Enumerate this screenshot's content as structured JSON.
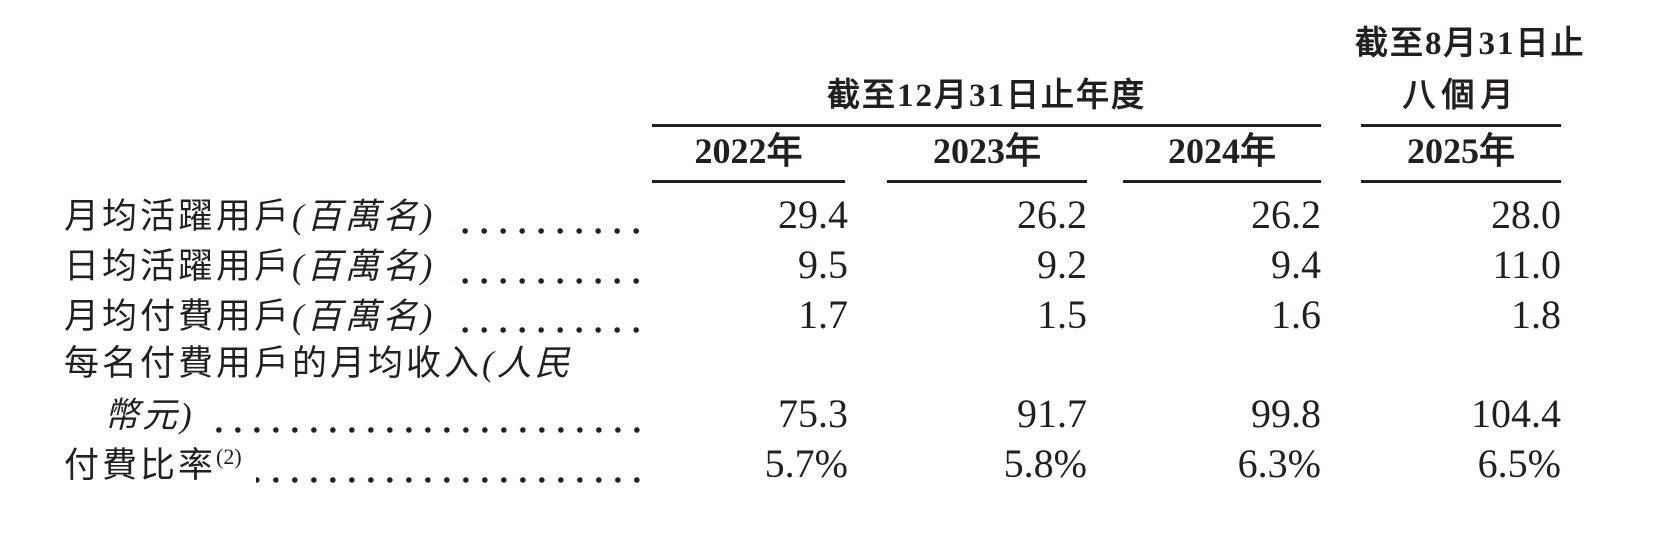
{
  "header": {
    "annual_group": "截至12月31日止年度",
    "interim_group_line1": "截至8月31日止",
    "interim_group_line2": "八個月",
    "years": [
      "2022年",
      "2023年",
      "2024年",
      "2025年"
    ]
  },
  "rows": [
    {
      "label": "月均活躍用戶",
      "label_note": "(百萬名)",
      "values": [
        "29.4",
        "26.2",
        "26.2",
        "28.0"
      ]
    },
    {
      "label": "日均活躍用戶",
      "label_note": "(百萬名)",
      "values": [
        "9.5",
        "9.2",
        "9.4",
        "11.0"
      ]
    },
    {
      "label": "月均付費用戶",
      "label_note": "(百萬名)",
      "values": [
        "1.7",
        "1.5",
        "1.6",
        "1.8"
      ]
    },
    {
      "label": "每名付費用戶的月均收入",
      "label_note": "(人民",
      "label_line2": "幣元)",
      "values": [
        "75.3",
        "91.7",
        "99.8",
        "104.4"
      ]
    },
    {
      "label": "付費比率",
      "footnote": "(2)",
      "values": [
        "5.7%",
        "5.8%",
        "6.3%",
        "6.5%"
      ]
    }
  ],
  "colors": {
    "text": "#231f20",
    "rule": "#231f20",
    "background": "#ffffff"
  }
}
